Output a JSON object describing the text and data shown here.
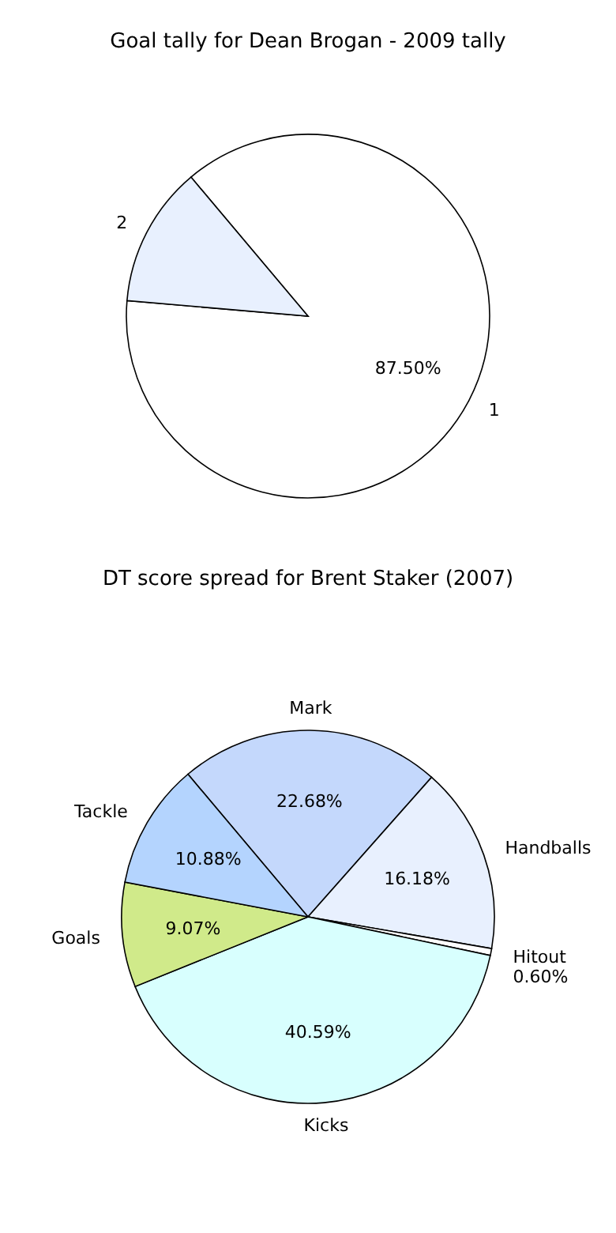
{
  "chart_data": [
    {
      "type": "pie",
      "title": "Goal tally for Dean Brogan - 2009 tally",
      "categories": [
        "1",
        "2"
      ],
      "values": [
        87.5,
        12.5
      ],
      "colors": [
        "#ffffff",
        "#e8f0fe"
      ],
      "value_labels": [
        "87.50%",
        null
      ]
    },
    {
      "type": "pie",
      "title": "DT score spread for Brent Staker (2007)",
      "categories": [
        "Mark",
        "Handballs",
        "Hitout",
        "Kicks",
        "Goals",
        "Tackle"
      ],
      "values": [
        22.68,
        16.18,
        0.6,
        40.59,
        9.07,
        10.88
      ],
      "colors": [
        "#c4d8fc",
        "#e8f0fe",
        "#ffffff",
        "#d8fffe",
        "#d0ea8a",
        "#b4d4fe"
      ],
      "value_labels": [
        "22.68%",
        "16.18%",
        "0.60%",
        "40.59%",
        "9.07%",
        "10.88%"
      ]
    }
  ]
}
